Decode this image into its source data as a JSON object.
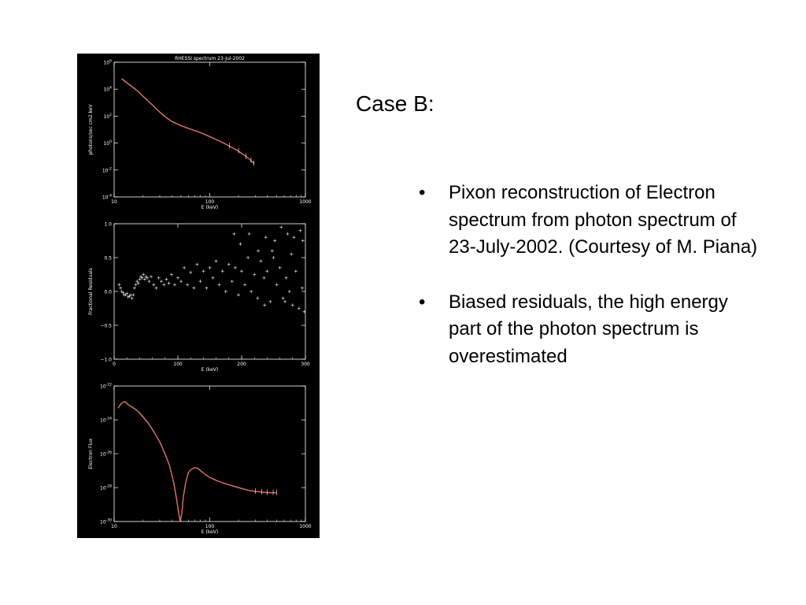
{
  "slide": {
    "title": "Case B:",
    "bullets": [
      "Pixon reconstruction of Electron spectrum from photon spectrum of 23-July-2002. (Courtesy of M. Piana)",
      "Biased residuals, the high energy part of the photon spectrum is overestimated"
    ],
    "bullet_symbol": "•"
  },
  "colors": {
    "figure_bg": "#000000",
    "axes": "#ffffff",
    "fit": "#ff2a1a",
    "data": "#ffffff"
  },
  "chart_data": [
    {
      "type": "line",
      "title": "RHESSI spectrum 23-Jul-2002",
      "xlabel": "E (keV)",
      "ylabel": "photons/sec cm2 keV",
      "xscale": "log",
      "yscale": "log",
      "xlim": [
        10,
        1000
      ],
      "ylim": [
        0.0001,
        1000000.0
      ],
      "xticks": [
        "10",
        "100",
        "1000"
      ],
      "yticks": [
        "10^6",
        "10^4",
        "10^2",
        "10^0",
        "10^-2",
        "10^-4"
      ],
      "series": [
        {
          "x": [
            12,
            14,
            17,
            20,
            25,
            30,
            35,
            40,
            50,
            60,
            80,
            100,
            130,
            160,
            200,
            240,
            270,
            290
          ],
          "y": [
            60000,
            25000,
            9000,
            3000,
            700,
            200,
            80,
            40,
            20,
            12,
            6,
            3,
            1.3,
            0.6,
            0.25,
            0.1,
            0.05,
            0.03
          ]
        }
      ]
    },
    {
      "type": "scatter",
      "xlabel": "E (keV)",
      "ylabel": "Fractional Residuals",
      "xlim": [
        0,
        300
      ],
      "ylim": [
        -1.0,
        1.0
      ],
      "xticks": [
        "0",
        "100",
        "200",
        "300"
      ],
      "yticks": [
        "1.0",
        "0.5",
        "0.0",
        "-0.5",
        "-1.0"
      ],
      "series": [
        {
          "x": [
            8,
            10,
            12,
            14,
            16,
            18,
            20,
            22,
            24,
            26,
            28,
            30,
            32,
            34,
            36,
            38,
            40,
            42,
            44,
            46,
            48,
            50,
            52,
            55,
            58,
            62,
            66,
            70,
            74,
            78,
            82,
            86,
            90,
            95,
            100,
            105,
            110,
            115,
            120,
            125,
            130,
            135,
            140,
            145,
            150,
            155,
            160,
            165,
            170,
            175,
            180,
            185,
            190,
            195,
            200,
            205,
            210,
            215,
            220,
            225,
            230,
            235,
            240,
            245,
            250,
            255,
            260,
            265,
            270,
            275,
            280,
            285,
            290,
            295,
            298,
            188,
            198,
            212,
            226,
            238,
            252,
            262,
            272,
            282,
            292,
            296,
            236,
            248,
            268,
            278
          ],
          "y": [
            0.1,
            0.05,
            0.0,
            -0.02,
            -0.05,
            -0.05,
            -0.03,
            -0.08,
            -0.07,
            -0.05,
            -0.1,
            -0.05,
            0.05,
            0.1,
            0.15,
            0.12,
            0.18,
            0.22,
            0.2,
            0.25,
            0.18,
            0.22,
            0.2,
            0.15,
            0.22,
            0.1,
            0.05,
            0.2,
            0.15,
            0.1,
            0.18,
            0.12,
            0.25,
            0.1,
            0.2,
            0.15,
            0.35,
            0.1,
            0.28,
            0.05,
            0.4,
            0.15,
            0.3,
            0.05,
            0.35,
            0.2,
            0.45,
            0.1,
            0.3,
            0.0,
            0.4,
            0.15,
            0.35,
            -0.05,
            0.3,
            0.1,
            0.5,
            0.0,
            0.25,
            -0.1,
            0.45,
            0.2,
            0.3,
            -0.15,
            0.5,
            0.1,
            0.35,
            -0.1,
            0.2,
            0.0,
            -0.2,
            0.3,
            -0.25,
            0.05,
            -0.3,
            0.85,
            0.7,
            0.85,
            0.6,
            0.8,
            0.75,
            0.95,
            0.85,
            0.8,
            0.9,
            0.75,
            -0.2,
            0.6,
            -0.15,
            0.55
          ]
        }
      ]
    },
    {
      "type": "line",
      "xlabel": "E (keV)",
      "ylabel": "Electron Flux",
      "xscale": "log",
      "yscale": "log",
      "xlim": [
        10,
        1000
      ],
      "ylim": [
        1e-30,
        1e-22
      ],
      "xticks": [
        "10",
        "100",
        "1000"
      ],
      "yticks": [
        "10^-22",
        "10^-24",
        "10^-26",
        "10^-28",
        "10^-30"
      ],
      "series": [
        {
          "x": [
            11,
            12,
            13,
            14,
            16,
            18,
            20,
            23,
            26,
            30,
            34,
            38,
            42,
            45,
            47,
            49,
            51,
            53,
            56,
            60,
            65,
            70,
            75,
            80,
            90,
            100,
            120,
            150,
            200,
            250,
            300,
            350,
            400,
            460,
            500
          ],
          "y": [
            5e-24,
            1e-23,
            1.2e-23,
            8e-24,
            5e-24,
            3e-24,
            1.5e-24,
            6e-25,
            2e-25,
            5e-26,
            1e-26,
            2e-27,
            2e-28,
            2e-29,
            4e-30,
            1e-30,
            3e-30,
            3e-29,
            2e-28,
            8e-28,
            1.3e-27,
            1.5e-27,
            1.4e-27,
            1e-27,
            6e-28,
            4e-28,
            2.5e-28,
            1.6e-28,
            1e-28,
            7e-29,
            6e-29,
            5.5e-29,
            5e-29,
            5e-29,
            5e-29
          ]
        }
      ]
    }
  ]
}
